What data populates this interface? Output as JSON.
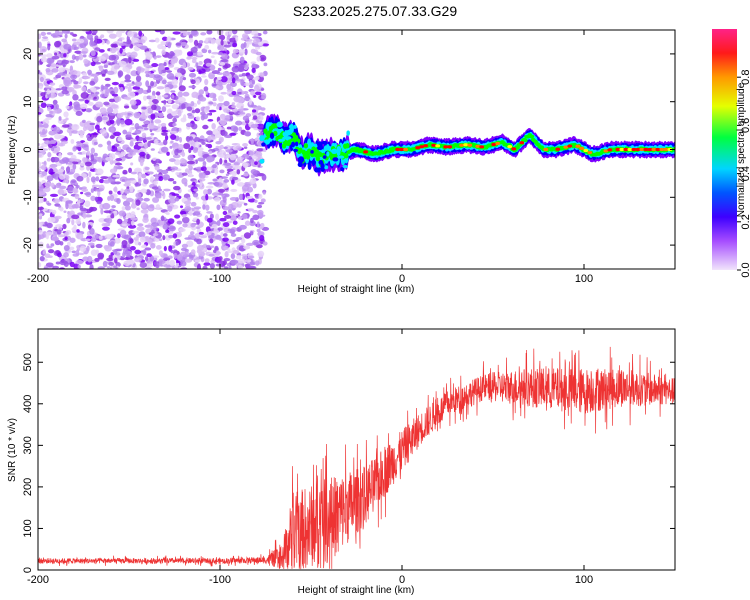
{
  "title": "S233.2025.275.07.33.G29",
  "chart_data": [
    {
      "type": "heatmap",
      "name": "spectrogram",
      "xlabel": "Height of straight line (km)",
      "ylabel": "Frequency (Hz)",
      "xlim": [
        -200,
        150
      ],
      "ylim": [
        -25,
        25
      ],
      "xticks": [
        -200,
        -100,
        0,
        100
      ],
      "yticks": [
        -20,
        -10,
        0,
        10,
        20
      ],
      "noise_region_x": [
        -200,
        -75
      ],
      "signal_start_x": -75,
      "ridge": [
        {
          "x": -75,
          "y": 3
        },
        {
          "x": -70,
          "y": 4
        },
        {
          "x": -65,
          "y": 2
        },
        {
          "x": -60,
          "y": 3
        },
        {
          "x": -55,
          "y": -1
        },
        {
          "x": -50,
          "y": 0
        },
        {
          "x": -45,
          "y": -2
        },
        {
          "x": -40,
          "y": -1
        },
        {
          "x": -35,
          "y": -1
        },
        {
          "x": -25,
          "y": 0
        },
        {
          "x": -15,
          "y": -1
        },
        {
          "x": -5,
          "y": 0
        },
        {
          "x": 5,
          "y": 0
        },
        {
          "x": 15,
          "y": 1
        },
        {
          "x": 25,
          "y": 0.5
        },
        {
          "x": 35,
          "y": 1
        },
        {
          "x": 45,
          "y": 0.5
        },
        {
          "x": 55,
          "y": 1.5
        },
        {
          "x": 62,
          "y": 0
        },
        {
          "x": 70,
          "y": 3
        },
        {
          "x": 78,
          "y": 0
        },
        {
          "x": 85,
          "y": 0
        },
        {
          "x": 95,
          "y": 1
        },
        {
          "x": 105,
          "y": -1
        },
        {
          "x": 115,
          "y": 0
        },
        {
          "x": 125,
          "y": 0
        },
        {
          "x": 135,
          "y": 0
        },
        {
          "x": 150,
          "y": 0
        }
      ],
      "colorbar": {
        "label": "Normalized spectral amplitude",
        "ticks": [
          0.0,
          0.2,
          0.4,
          0.6,
          0.8
        ],
        "range": [
          0,
          1
        ],
        "colors": [
          "#f1e4fb",
          "#7f00ff",
          "#0000ff",
          "#00e5ff",
          "#00ff00",
          "#ffff00",
          "#ff7f00",
          "#ff0000",
          "#ff1493"
        ]
      }
    },
    {
      "type": "line",
      "name": "snr",
      "xlabel": "Height of straight line (km)",
      "ylabel": "SNR (10 * v/v)",
      "xlim": [
        -200,
        150
      ],
      "ylim": [
        0,
        580
      ],
      "xticks": [
        -200,
        -100,
        0,
        100
      ],
      "yticks": [
        0,
        100,
        200,
        300,
        400,
        500
      ],
      "color": "#ee3333",
      "profile": [
        {
          "x": -200,
          "mean": 22,
          "noise": 8
        },
        {
          "x": -100,
          "mean": 22,
          "noise": 8
        },
        {
          "x": -75,
          "mean": 24,
          "noise": 10
        },
        {
          "x": -66,
          "mean": 30,
          "noise": 40
        },
        {
          "x": -60,
          "mean": 90,
          "noise": 120
        },
        {
          "x": -40,
          "mean": 120,
          "noise": 130
        },
        {
          "x": -20,
          "mean": 180,
          "noise": 90
        },
        {
          "x": -5,
          "mean": 260,
          "noise": 70
        },
        {
          "x": 10,
          "mean": 340,
          "noise": 50
        },
        {
          "x": 25,
          "mean": 400,
          "noise": 40
        },
        {
          "x": 45,
          "mean": 440,
          "noise": 40
        },
        {
          "x": 70,
          "mean": 440,
          "noise": 60
        },
        {
          "x": 100,
          "mean": 430,
          "noise": 70
        },
        {
          "x": 120,
          "mean": 440,
          "noise": 60
        },
        {
          "x": 150,
          "mean": 430,
          "noise": 40
        }
      ]
    }
  ]
}
